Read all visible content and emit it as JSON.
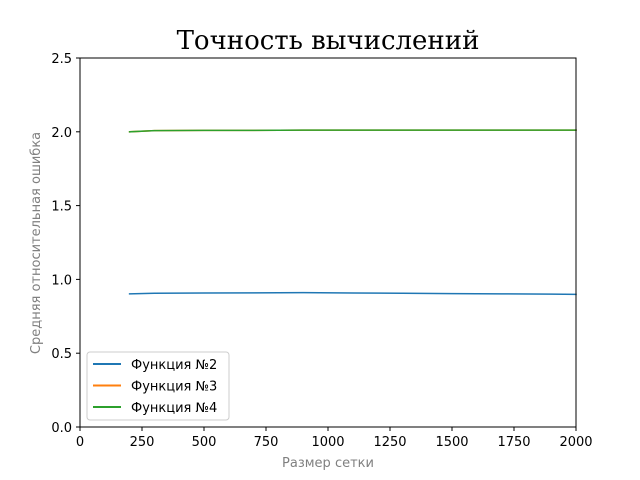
{
  "chart_data": {
    "type": "line",
    "title": "Точность вычислений",
    "xlabel": "Размер сетки",
    "ylabel": "Средняя относительная ошибка",
    "xlim": [
      0,
      2000
    ],
    "ylim": [
      0,
      2.5
    ],
    "xticks": [
      0,
      250,
      500,
      750,
      1000,
      1250,
      1500,
      1750,
      2000
    ],
    "yticks": [
      0.0,
      0.5,
      1.0,
      1.5,
      2.0,
      2.5
    ],
    "xtick_labels": [
      "0",
      "250",
      "500",
      "750",
      "1000",
      "1250",
      "1500",
      "1750",
      "2000"
    ],
    "ytick_labels": [
      "0.0",
      "0.5",
      "1.0",
      "1.5",
      "2.0",
      "2.5"
    ],
    "grid": false,
    "legend_position": "lower-left",
    "series": [
      {
        "name": "Функция №2",
        "color": "#1f77b4",
        "x": [
          200,
          300,
          500,
          700,
          900,
          1100,
          1300,
          1500,
          1700,
          1900,
          2000
        ],
        "y": [
          0.902,
          0.906,
          0.908,
          0.909,
          0.91,
          0.908,
          0.906,
          0.904,
          0.902,
          0.9,
          0.899
        ]
      },
      {
        "name": "Функция №3",
        "color": "#ff7f0e",
        "x": [
          200,
          300,
          500,
          700,
          900,
          1100,
          1300,
          1500,
          1700,
          1900,
          2000
        ],
        "y": [
          2.0,
          2.008,
          2.01,
          2.01,
          2.011,
          2.011,
          2.011,
          2.011,
          2.011,
          2.011,
          2.011
        ]
      },
      {
        "name": "Функция №4",
        "color": "#2ca02c",
        "x": [
          200,
          300,
          500,
          700,
          900,
          1100,
          1300,
          1500,
          1700,
          1900,
          2000
        ],
        "y": [
          2.0,
          2.008,
          2.01,
          2.01,
          2.011,
          2.011,
          2.011,
          2.011,
          2.011,
          2.011,
          2.011
        ]
      }
    ]
  }
}
